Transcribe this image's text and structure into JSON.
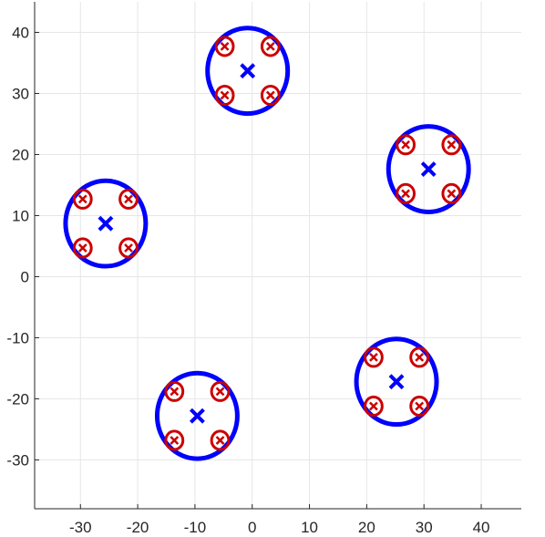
{
  "chart_data": {
    "type": "scatter",
    "title": "",
    "xlabel": "",
    "ylabel": "",
    "xlim": [
      -38,
      47
    ],
    "ylim": [
      -38,
      45
    ],
    "grid": true,
    "x_ticks": [
      -30,
      -20,
      -10,
      0,
      10,
      20,
      30,
      40
    ],
    "y_ticks": [
      -30,
      -20,
      -10,
      0,
      10,
      20,
      30,
      40
    ],
    "x_tick_labels": [
      "-30",
      "-20",
      "-10",
      "0",
      "10",
      "20",
      "30",
      "40"
    ],
    "y_tick_labels": [
      "-30",
      "-20",
      "-10",
      "0",
      "10",
      "20",
      "30",
      "40"
    ],
    "series": [
      {
        "role": "cluster-centers",
        "color": "#0000ff",
        "marker": "x",
        "ring_radius": 7,
        "points": [
          {
            "x": -0.8,
            "y": 33.7
          },
          {
            "x": -25.6,
            "y": 8.7
          },
          {
            "x": 30.8,
            "y": 17.6
          },
          {
            "x": -9.6,
            "y": -22.8
          },
          {
            "x": 25.2,
            "y": -17.2
          }
        ]
      },
      {
        "role": "sub-points",
        "color": "#cc0000",
        "marker": "x",
        "ring_radius": 1.5,
        "points": [
          {
            "x": -4.8,
            "y": 37.7
          },
          {
            "x": 3.2,
            "y": 37.7
          },
          {
            "x": -4.8,
            "y": 29.7
          },
          {
            "x": 3.2,
            "y": 29.7
          },
          {
            "x": -29.6,
            "y": 12.7
          },
          {
            "x": -21.6,
            "y": 12.7
          },
          {
            "x": -29.6,
            "y": 4.7
          },
          {
            "x": -21.6,
            "y": 4.7
          },
          {
            "x": 26.8,
            "y": 21.6
          },
          {
            "x": 34.8,
            "y": 21.6
          },
          {
            "x": 26.8,
            "y": 13.6
          },
          {
            "x": 34.8,
            "y": 13.6
          },
          {
            "x": -13.6,
            "y": -18.8
          },
          {
            "x": -5.6,
            "y": -18.8
          },
          {
            "x": -13.6,
            "y": -26.8
          },
          {
            "x": -5.6,
            "y": -26.8
          },
          {
            "x": 21.2,
            "y": -13.2
          },
          {
            "x": 29.2,
            "y": -13.2
          },
          {
            "x": 21.2,
            "y": -21.2
          },
          {
            "x": 29.2,
            "y": -21.2
          }
        ]
      }
    ]
  }
}
